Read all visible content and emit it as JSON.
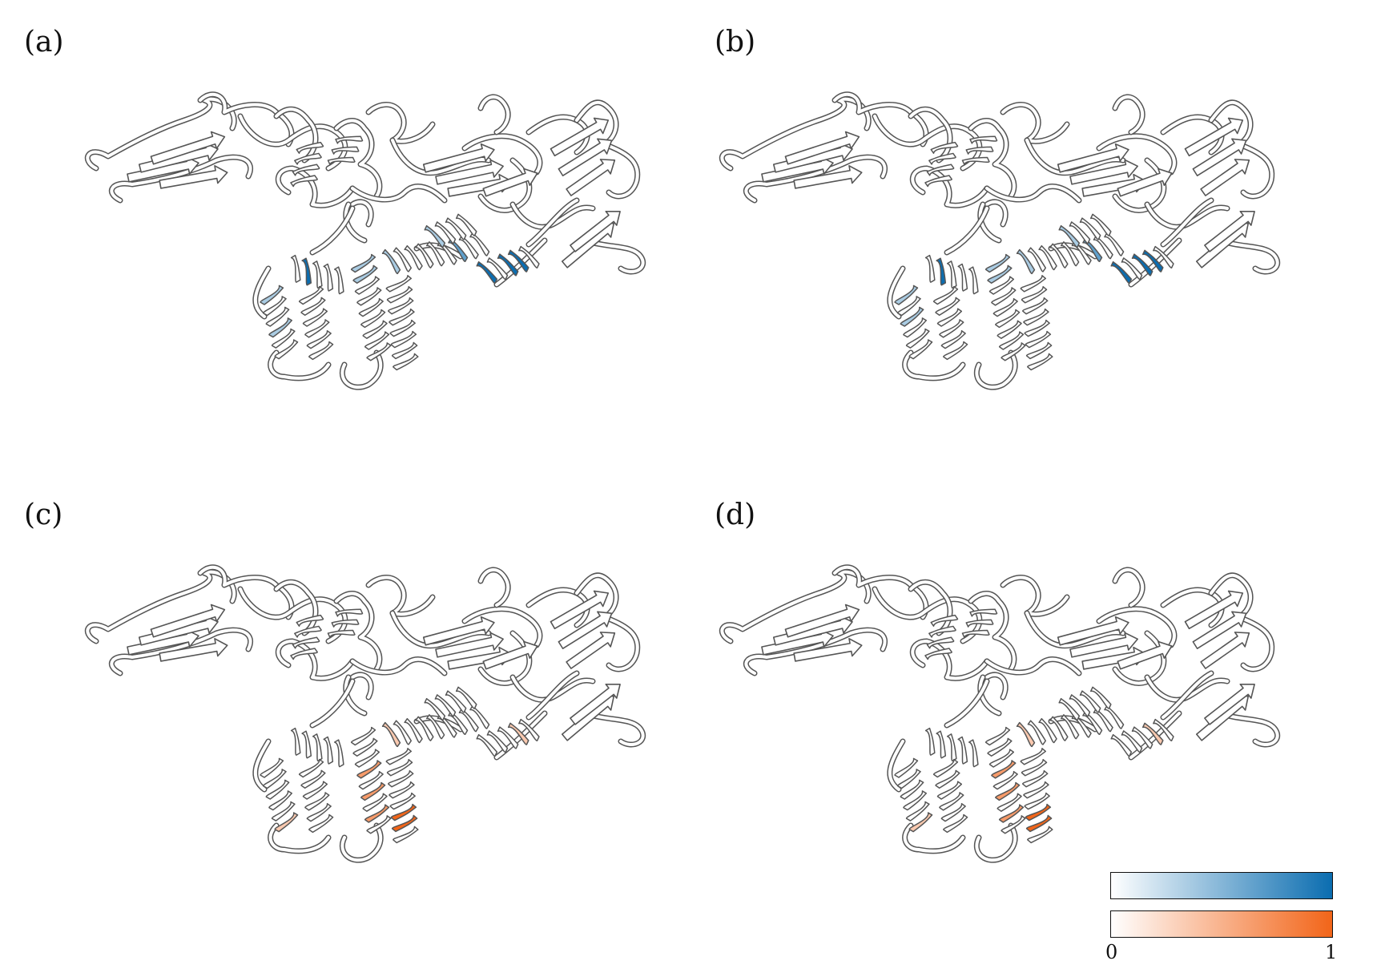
{
  "panels": [
    {
      "label": "(a)",
      "color_scheme": "blue"
    },
    {
      "label": "(b)",
      "color_scheme": "blue"
    },
    {
      "label": "(c)",
      "color_scheme": "orange"
    },
    {
      "label": "(d)",
      "color_scheme": "orange"
    }
  ],
  "colorbar": {
    "blue_gradient": [
      "#ffffff",
      "#0b6db0"
    ],
    "orange_gradient": [
      "#ffffff",
      "#f26519"
    ],
    "tick_min": "0",
    "tick_max": "1"
  },
  "colors": {
    "outline": "#555555",
    "fill": "#ffffff",
    "blue": "#0b6db0",
    "orange": "#f26519"
  }
}
